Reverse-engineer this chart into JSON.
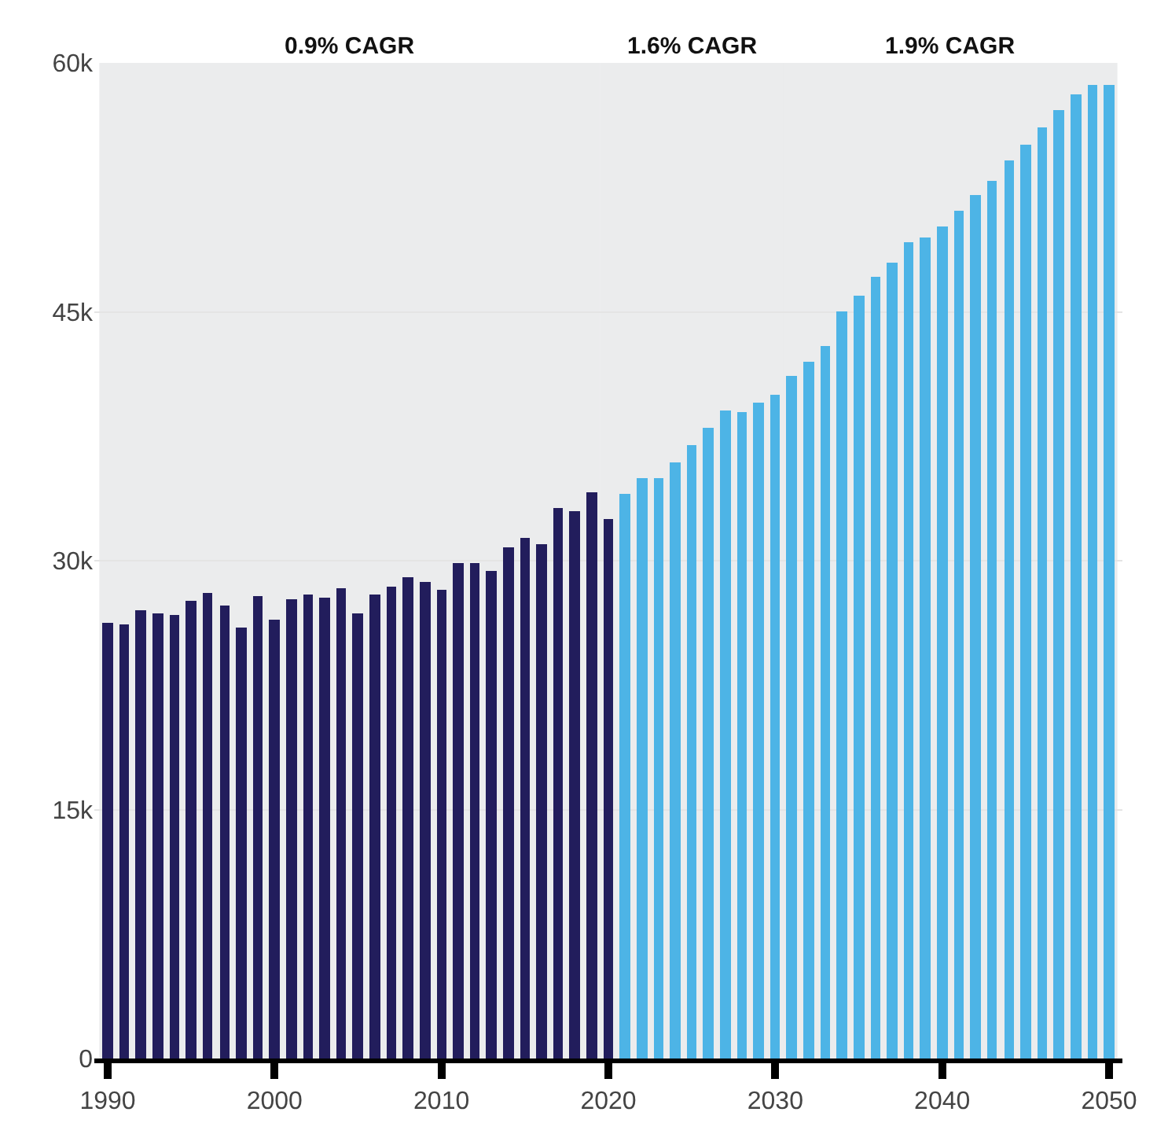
{
  "chart_data": {
    "type": "bar",
    "series": [
      {
        "color": "#221d5c",
        "x": [
          1990,
          1991,
          1992,
          1993,
          1994,
          1995,
          1996,
          1997,
          1998,
          1999,
          2000,
          2001,
          2002,
          2003,
          2004,
          2005,
          2006,
          2007,
          2008,
          2009,
          2010,
          2011,
          2012,
          2013,
          2014,
          2015,
          2016,
          2017,
          2018,
          2019,
          2020
        ],
        "values": [
          26300,
          26200,
          27000,
          26800,
          26700,
          27600,
          28100,
          27300,
          26000,
          27900,
          26400,
          27700,
          28000,
          27800,
          28300,
          26800,
          28000,
          28400,
          29000,
          28700,
          28200,
          29900,
          29900,
          29400,
          30800,
          31400,
          31000,
          33200,
          33000,
          34100,
          32500
        ]
      },
      {
        "color": "#4db4e6",
        "x": [
          2021,
          2022,
          2023,
          2024,
          2025,
          2026,
          2027,
          2028,
          2029,
          2030,
          2031,
          2032,
          2033,
          2034,
          2035,
          2036,
          2037,
          2038,
          2039,
          2040,
          2041,
          2042,
          2043,
          2044,
          2045,
          2046,
          2047,
          2048,
          2049,
          2050
        ],
        "values": [
          34000,
          35000,
          35000,
          35900,
          37000,
          38000,
          39100,
          39000,
          39500,
          40000,
          41100,
          42000,
          42900,
          45000,
          46000,
          47100,
          48000,
          49200,
          49500,
          50100,
          51100,
          52000,
          52900,
          54100,
          55100,
          56100,
          57200,
          58100,
          58700,
          58700
        ]
      }
    ],
    "xlim": [
      1989.2,
      2050.8
    ],
    "xticks": [
      1990,
      2000,
      2010,
      2020,
      2030,
      2040,
      2050
    ],
    "ylim": [
      0,
      60000
    ],
    "yticks": [
      0,
      {
        "value": 15000,
        "label": "15k"
      },
      {
        "value": 30000,
        "label": "30k"
      },
      {
        "value": 45000,
        "label": "45k"
      },
      {
        "value": 60000,
        "label": "60k"
      }
    ],
    "grid": "y",
    "bands": [
      {
        "axis": "x",
        "from": 1989.5,
        "to": 2019.5,
        "label": "0.9% CAGR",
        "color": "#d3d4d6"
      },
      {
        "axis": "x",
        "from": 2019.5,
        "to": 2030.5,
        "label": "1.6% CAGR",
        "color": "#d3d4d6"
      },
      {
        "axis": "x",
        "from": 2030.5,
        "to": 2050.5,
        "label": "1.9% CAGR",
        "color": "#d3d4d6"
      }
    ]
  }
}
